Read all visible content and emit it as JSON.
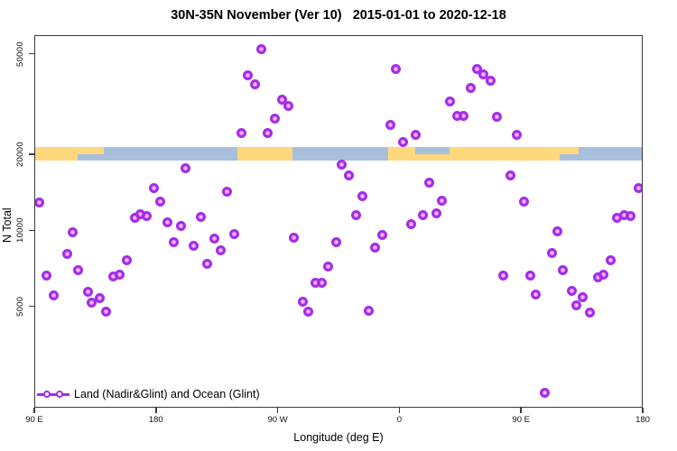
{
  "title": "30N-35N November (Ver 10)   2015-01-01 to 2020-12-18",
  "legend": {
    "label": "Land (Nadir&Glint) and Ocean (Glint)"
  },
  "colors": {
    "point": "#a32ce8",
    "point_inner": "#d830ee",
    "land": "#ffd77d",
    "ocean": "#a8bfdc",
    "axis": "#3a3a3a"
  },
  "chart_data": {
    "type": "scatter",
    "title": "30N-35N November (Ver 10)   2015-01-01 to 2020-12-18",
    "xlabel": "Longitude (deg E)",
    "ylabel": "N Total",
    "legend_position": "bottom-left-inside",
    "grid": false,
    "x_axis": {
      "note": "x is degrees east of 90E along a wrapped longitude axis spanning 450 deg",
      "range": [
        0,
        450
      ],
      "ticks": [
        {
          "pos": 0,
          "label": "90 E"
        },
        {
          "pos": 90,
          "label": "180"
        },
        {
          "pos": 180,
          "label": "90 W"
        },
        {
          "pos": 270,
          "label": "0"
        },
        {
          "pos": 360,
          "label": "90 E"
        },
        {
          "pos": 450,
          "label": "180"
        }
      ]
    },
    "y_axis": {
      "scale": "log10",
      "range": [
        1985,
        59200
      ],
      "ticks": [
        5000,
        10000,
        20000,
        50000
      ]
    },
    "map_band": {
      "description": "land/ocean strip for 30N-35N latitude band drawn across plot near N=20000",
      "value_top": 21500,
      "value_bottom": 19000,
      "land_full": [
        [
          0,
          31.5
        ],
        [
          149.5,
          190.5
        ],
        [
          261,
          388
        ]
      ],
      "land_top_half": [
        [
          31.5,
          51
        ],
        [
          388,
          402
        ]
      ],
      "ocean_top_half_over_land": [
        [
          281,
          306.5
        ]
      ]
    },
    "series": [
      {
        "name": "Land (Nadir&Glint) and Ocean (Glint)",
        "points": [
          [
            3,
            13000
          ],
          [
            8.5,
            6650
          ],
          [
            13.5,
            5550
          ],
          [
            23.5,
            8150
          ],
          [
            28,
            9900
          ],
          [
            32,
            7000
          ],
          [
            39,
            5750
          ],
          [
            42,
            5200
          ],
          [
            47.5,
            5450
          ],
          [
            52.5,
            4800
          ],
          [
            58,
            6600
          ],
          [
            62.5,
            6750
          ],
          [
            67.5,
            7700
          ],
          [
            73.5,
            11300
          ],
          [
            77.5,
            11700
          ],
          [
            82.5,
            11450
          ],
          [
            88,
            14800
          ],
          [
            92.5,
            13050
          ],
          [
            98,
            10850
          ],
          [
            102.5,
            9050
          ],
          [
            107.5,
            10500
          ],
          [
            111,
            17800
          ],
          [
            117.5,
            8750
          ],
          [
            122.5,
            11400
          ],
          [
            127.5,
            7400
          ],
          [
            132.5,
            9350
          ],
          [
            137,
            8400
          ],
          [
            142,
            14300
          ],
          [
            147,
            9750
          ],
          [
            152.5,
            24550
          ],
          [
            157.5,
            41300
          ],
          [
            162.5,
            38100
          ],
          [
            167,
            52400
          ],
          [
            172,
            24450
          ],
          [
            177.5,
            27900
          ],
          [
            182.5,
            33200
          ],
          [
            187,
            31400
          ],
          [
            191.5,
            9450
          ],
          [
            198,
            5250
          ],
          [
            202,
            4800
          ],
          [
            207,
            6250
          ],
          [
            212,
            6250
          ],
          [
            216.5,
            7250
          ],
          [
            222.5,
            9050
          ],
          [
            226.5,
            18400
          ],
          [
            232,
            16650
          ],
          [
            237.5,
            11600
          ],
          [
            242,
            13750
          ],
          [
            246.5,
            4830
          ],
          [
            251.5,
            8600
          ],
          [
            256.5,
            9700
          ],
          [
            262.5,
            26400
          ],
          [
            266.5,
            44000
          ],
          [
            272,
            22500
          ],
          [
            278,
            10700
          ],
          [
            281.5,
            24100
          ],
          [
            287,
            11600
          ],
          [
            291.5,
            15550
          ],
          [
            296.5,
            11750
          ],
          [
            301,
            13250
          ],
          [
            307,
            32700
          ],
          [
            312,
            28700
          ],
          [
            317,
            28650
          ],
          [
            322,
            36800
          ],
          [
            326.5,
            43700
          ],
          [
            331.5,
            41700
          ],
          [
            336.5,
            39400
          ],
          [
            341.5,
            28450
          ],
          [
            346,
            6700
          ],
          [
            351.5,
            16650
          ],
          [
            356.5,
            24100
          ],
          [
            361.5,
            13050
          ],
          [
            366.5,
            6700
          ],
          [
            370,
            5600
          ],
          [
            377,
            2300
          ],
          [
            382,
            8200
          ],
          [
            386,
            9950
          ],
          [
            390.5,
            7000
          ],
          [
            397,
            5800
          ],
          [
            400.5,
            5100
          ],
          [
            405,
            5500
          ],
          [
            410.5,
            4780
          ],
          [
            416,
            6550
          ],
          [
            420.5,
            6750
          ],
          [
            425.5,
            7650
          ],
          [
            430,
            11300
          ],
          [
            435.5,
            11600
          ],
          [
            440,
            11450
          ],
          [
            446,
            14850
          ]
        ]
      }
    ]
  }
}
